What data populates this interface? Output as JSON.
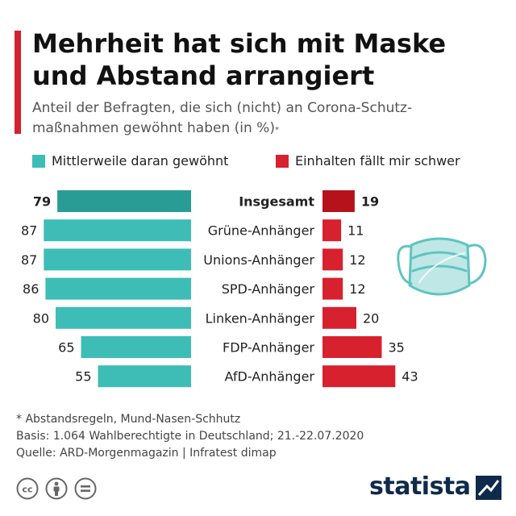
{
  "header": {
    "title_line1": "Mehrheit hat sich mit Maske",
    "title_line2": "und Abstand arrangiert",
    "subtitle_line1": "Anteil der Befragten, die sich (nicht) an Corona-Schutz-",
    "subtitle_line2": "maßnahmen gewöhnt haben (in %)",
    "subtitle_marker": "*"
  },
  "legend": {
    "left_label": "Mittlerweile daran gewöhnt",
    "right_label": "Einhalten fällt mir schwer"
  },
  "colors": {
    "teal": "#3dbdb6",
    "teal_dark": "#2a9c96",
    "red": "#d7212f",
    "red_dark": "#b5121c",
    "accent": "#d42030",
    "mask": "#5fc4c0"
  },
  "icons": [
    "face-mask-icon",
    "cc-icon",
    "attribution-icon",
    "no-derivatives-icon",
    "statista-logo-icon"
  ],
  "chart_data": {
    "type": "bar",
    "orientation": "diverging-horizontal",
    "categories": [
      "Insgesamt",
      "Grüne-Anhänger",
      "Unions-Anhänger",
      "SPD-Anhänger",
      "Linken-Anhänger",
      "FDP-Anhänger",
      "AfD-Anhänger"
    ],
    "series": [
      {
        "name": "Mittlerweile daran gewöhnt",
        "values": [
          79,
          87,
          87,
          86,
          80,
          65,
          55
        ]
      },
      {
        "name": "Einhalten fällt mir schwer",
        "values": [
          19,
          11,
          12,
          12,
          20,
          35,
          43
        ]
      }
    ],
    "unit": "%",
    "highlight_category": "Insgesamt"
  },
  "footer": {
    "note": "* Abstandsregeln, Mund-Nasen-Schhutz",
    "basis": "Basis: 1.064 Wahlberechtigte in Deutschland; 21.-22.07.2020",
    "source": "Quelle: ARD-Morgenmagazin | Infratest dimap",
    "brand": "statista"
  }
}
